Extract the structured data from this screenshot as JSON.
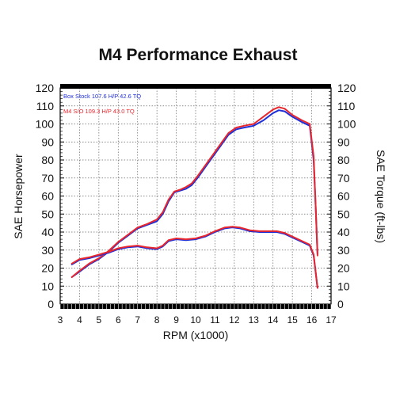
{
  "chart_data": {
    "type": "line",
    "title": "M4 Performance Exhaust",
    "xlabel": "RPM (x1000)",
    "ylabel_left": "SAE Horsepower",
    "ylabel_right": "SAE Torque (ft-lbs)",
    "xlim": [
      3,
      17
    ],
    "ylim": [
      0,
      120
    ],
    "x_ticks": [
      3,
      4,
      5,
      6,
      7,
      8,
      9,
      10,
      11,
      12,
      13,
      14,
      15,
      16,
      17
    ],
    "y_ticks": [
      0,
      10,
      20,
      30,
      40,
      50,
      60,
      70,
      80,
      90,
      100,
      110,
      120
    ],
    "grid": true,
    "legend_position": "top-left",
    "series": [
      {
        "name": "Box Stock 107.6 H/P 42.6 TQ",
        "metric": "horsepower",
        "color": "#1f2fd8",
        "points": [
          [
            3.6,
            15
          ],
          [
            4.0,
            18
          ],
          [
            4.5,
            22
          ],
          [
            5.0,
            25
          ],
          [
            5.5,
            29
          ],
          [
            6.0,
            34
          ],
          [
            6.5,
            38
          ],
          [
            7.0,
            42
          ],
          [
            7.5,
            44
          ],
          [
            8.0,
            46
          ],
          [
            8.3,
            50
          ],
          [
            8.6,
            57
          ],
          [
            8.9,
            62
          ],
          [
            9.2,
            63
          ],
          [
            9.5,
            64
          ],
          [
            9.8,
            66
          ],
          [
            10.1,
            70
          ],
          [
            10.5,
            76
          ],
          [
            10.9,
            82
          ],
          [
            11.3,
            88
          ],
          [
            11.7,
            94
          ],
          [
            12.1,
            97
          ],
          [
            12.5,
            98
          ],
          [
            13.0,
            99
          ],
          [
            13.5,
            102
          ],
          [
            14.0,
            106
          ],
          [
            14.3,
            107.6
          ],
          [
            14.6,
            107
          ],
          [
            15.0,
            104
          ],
          [
            15.5,
            101
          ],
          [
            15.9,
            99
          ],
          [
            16.1,
            80
          ],
          [
            16.2,
            55
          ],
          [
            16.3,
            28
          ]
        ]
      },
      {
        "name": "M4 S/O 109.3 H/P 43.0 TQ",
        "metric": "horsepower",
        "color": "#e8262d",
        "points": [
          [
            3.6,
            15
          ],
          [
            4.0,
            18.5
          ],
          [
            4.5,
            22.5
          ],
          [
            5.0,
            25.5
          ],
          [
            5.5,
            29.5
          ],
          [
            6.0,
            34.5
          ],
          [
            6.5,
            38.5
          ],
          [
            7.0,
            42.5
          ],
          [
            7.5,
            44.5
          ],
          [
            8.0,
            47
          ],
          [
            8.3,
            51
          ],
          [
            8.6,
            58
          ],
          [
            8.9,
            62.5
          ],
          [
            9.2,
            63.5
          ],
          [
            9.5,
            65
          ],
          [
            9.8,
            67
          ],
          [
            10.1,
            71
          ],
          [
            10.5,
            77
          ],
          [
            10.9,
            83
          ],
          [
            11.3,
            89
          ],
          [
            11.7,
            95
          ],
          [
            12.1,
            98
          ],
          [
            12.5,
            99
          ],
          [
            13.0,
            100
          ],
          [
            13.5,
            104
          ],
          [
            14.0,
            108
          ],
          [
            14.3,
            109.3
          ],
          [
            14.6,
            108.5
          ],
          [
            15.0,
            105
          ],
          [
            15.5,
            102
          ],
          [
            15.9,
            100
          ],
          [
            16.1,
            82
          ],
          [
            16.2,
            55
          ],
          [
            16.3,
            27
          ]
        ]
      },
      {
        "name": "Box Stock 107.6 H/P 42.6 TQ",
        "metric": "torque",
        "color": "#1f2fd8",
        "points": [
          [
            3.6,
            22
          ],
          [
            4.0,
            24.5
          ],
          [
            4.5,
            25.5
          ],
          [
            5.0,
            27
          ],
          [
            5.5,
            28.5
          ],
          [
            6.0,
            30.5
          ],
          [
            6.5,
            31.5
          ],
          [
            7.0,
            32
          ],
          [
            7.5,
            31
          ],
          [
            8.0,
            30.5
          ],
          [
            8.3,
            32
          ],
          [
            8.6,
            35
          ],
          [
            9.0,
            36
          ],
          [
            9.5,
            35.5
          ],
          [
            10.0,
            36
          ],
          [
            10.5,
            37.5
          ],
          [
            11.0,
            40
          ],
          [
            11.5,
            42
          ],
          [
            11.9,
            42.6
          ],
          [
            12.3,
            42
          ],
          [
            12.8,
            40.5
          ],
          [
            13.3,
            40
          ],
          [
            13.8,
            40
          ],
          [
            14.2,
            40
          ],
          [
            14.6,
            39
          ],
          [
            15.0,
            37
          ],
          [
            15.5,
            34.5
          ],
          [
            15.9,
            32.5
          ],
          [
            16.1,
            27
          ],
          [
            16.2,
            18
          ],
          [
            16.3,
            9
          ]
        ]
      },
      {
        "name": "M4 S/O 109.3 H/P 43.0 TQ",
        "metric": "torque",
        "color": "#e8262d",
        "points": [
          [
            3.6,
            22.5
          ],
          [
            4.0,
            25
          ],
          [
            4.5,
            26
          ],
          [
            5.0,
            27.5
          ],
          [
            5.5,
            29
          ],
          [
            6.0,
            31
          ],
          [
            6.5,
            32
          ],
          [
            7.0,
            32.5
          ],
          [
            7.5,
            31.5
          ],
          [
            8.0,
            31
          ],
          [
            8.3,
            32.5
          ],
          [
            8.6,
            35.5
          ],
          [
            9.0,
            36.5
          ],
          [
            9.5,
            36
          ],
          [
            10.0,
            36.5
          ],
          [
            10.5,
            38
          ],
          [
            11.0,
            40.5
          ],
          [
            11.5,
            42.5
          ],
          [
            11.9,
            43
          ],
          [
            12.3,
            42.5
          ],
          [
            12.8,
            41
          ],
          [
            13.3,
            40.5
          ],
          [
            13.8,
            40.5
          ],
          [
            14.2,
            40.5
          ],
          [
            14.6,
            39.5
          ],
          [
            15.0,
            37.5
          ],
          [
            15.5,
            35
          ],
          [
            15.9,
            33
          ],
          [
            16.1,
            27.5
          ],
          [
            16.2,
            18
          ],
          [
            16.3,
            9
          ]
        ]
      }
    ]
  }
}
